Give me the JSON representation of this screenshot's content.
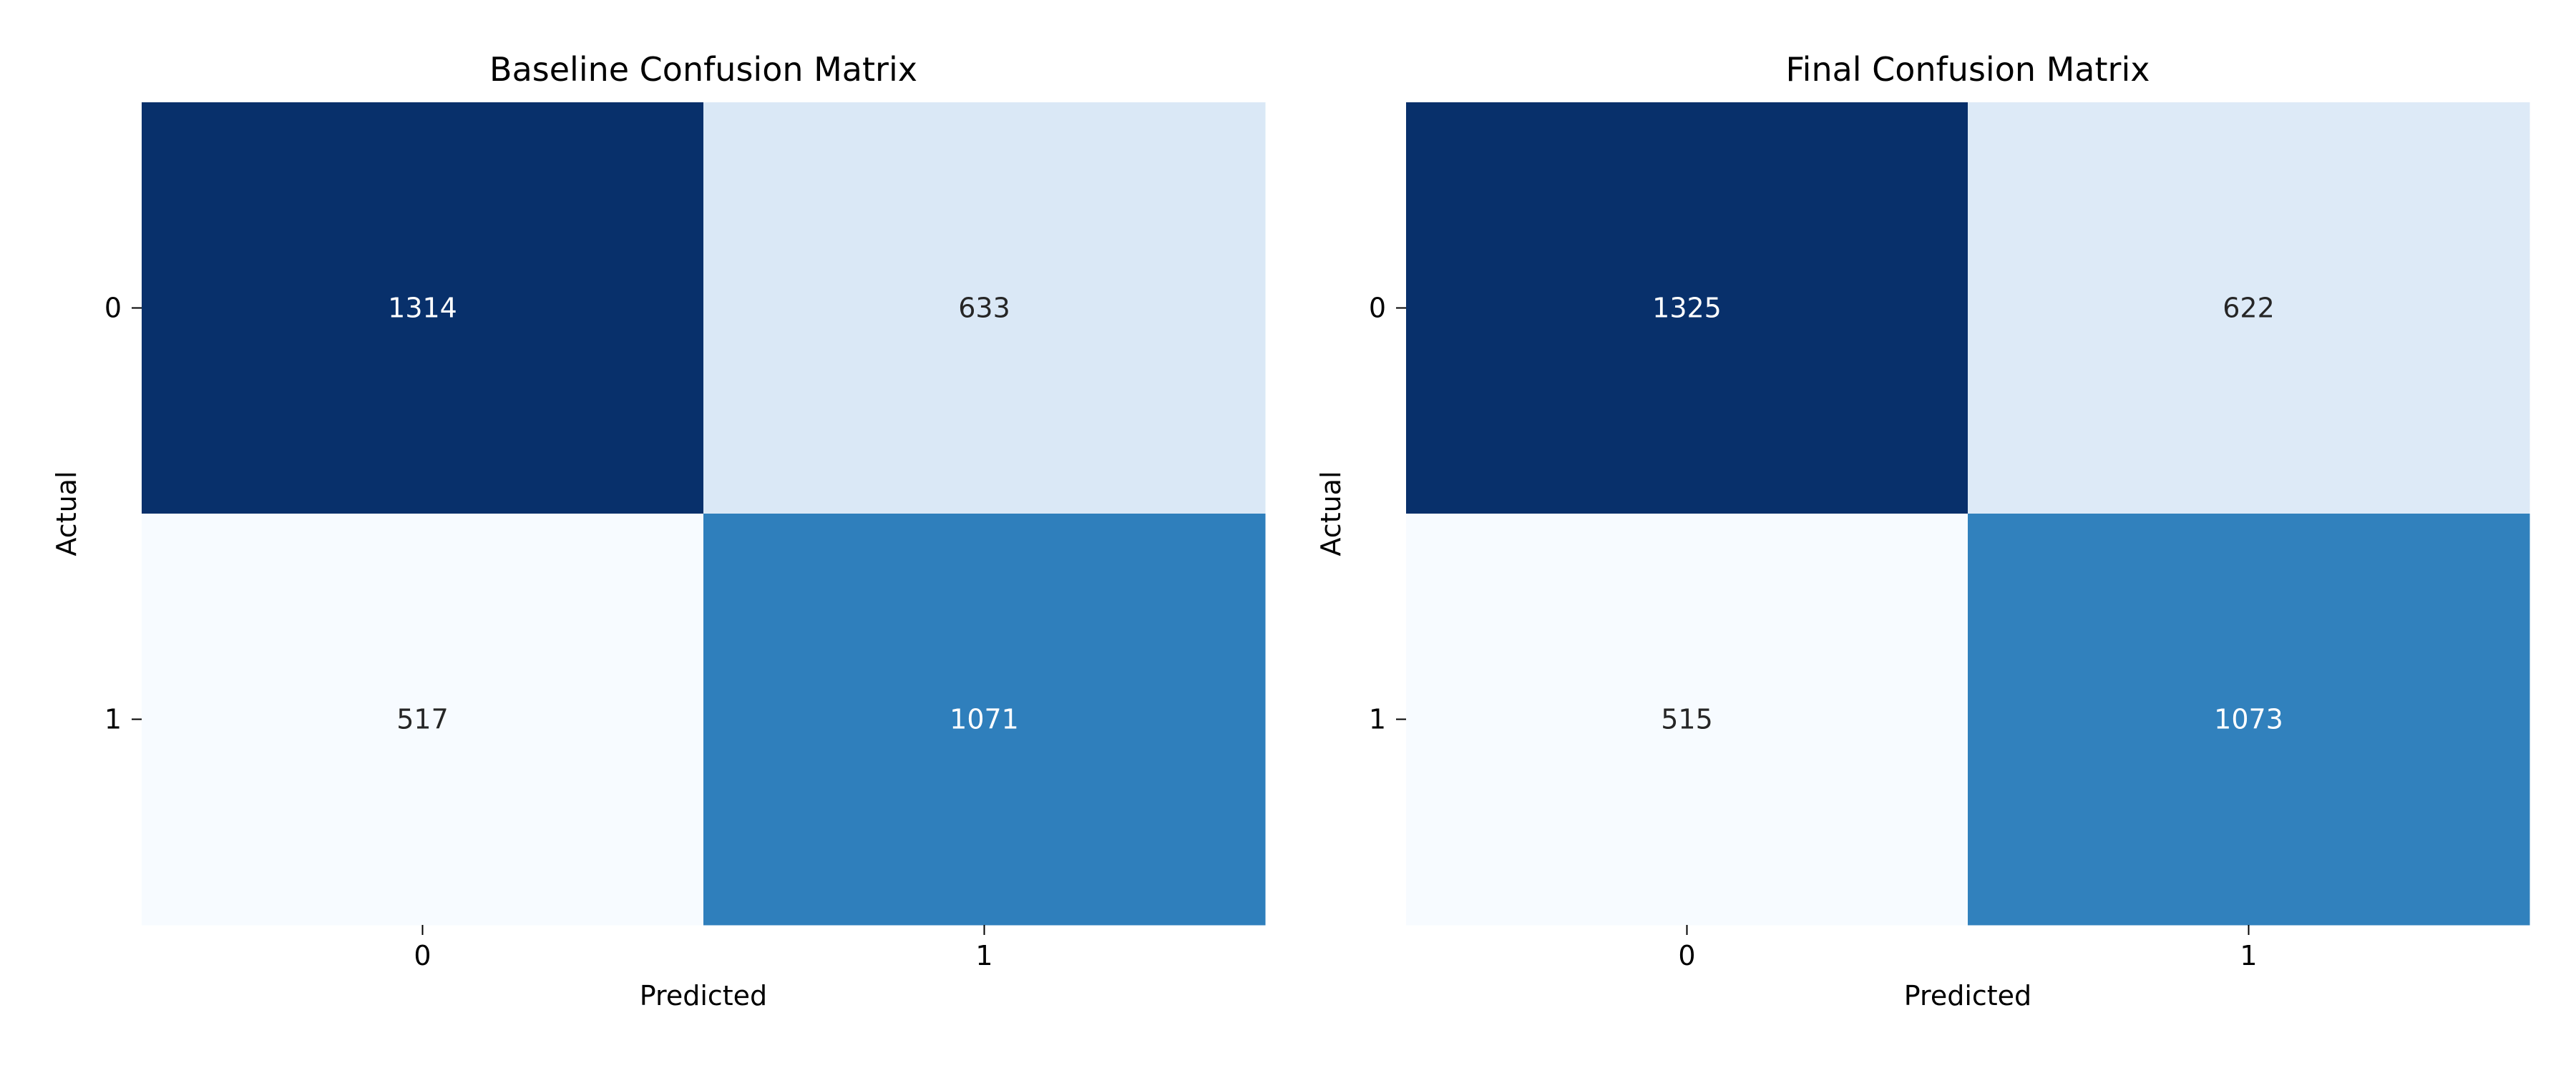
{
  "chart_data": [
    {
      "type": "heatmap",
      "title": "Baseline Confusion Matrix",
      "xlabel": "Predicted",
      "ylabel": "Actual",
      "x_categories": [
        "0",
        "1"
      ],
      "y_categories": [
        "0",
        "1"
      ],
      "values": [
        [
          1314,
          633
        ],
        [
          517,
          1071
        ]
      ],
      "colormap": "Blues",
      "colorbar": false,
      "annotations": true
    },
    {
      "type": "heatmap",
      "title": "Final Confusion Matrix",
      "xlabel": "Predicted",
      "ylabel": "Actual",
      "x_categories": [
        "0",
        "1"
      ],
      "y_categories": [
        "0",
        "1"
      ],
      "values": [
        [
          1325,
          622
        ],
        [
          515,
          1073
        ]
      ],
      "colormap": "Blues",
      "colorbar": false,
      "annotations": true
    }
  ]
}
